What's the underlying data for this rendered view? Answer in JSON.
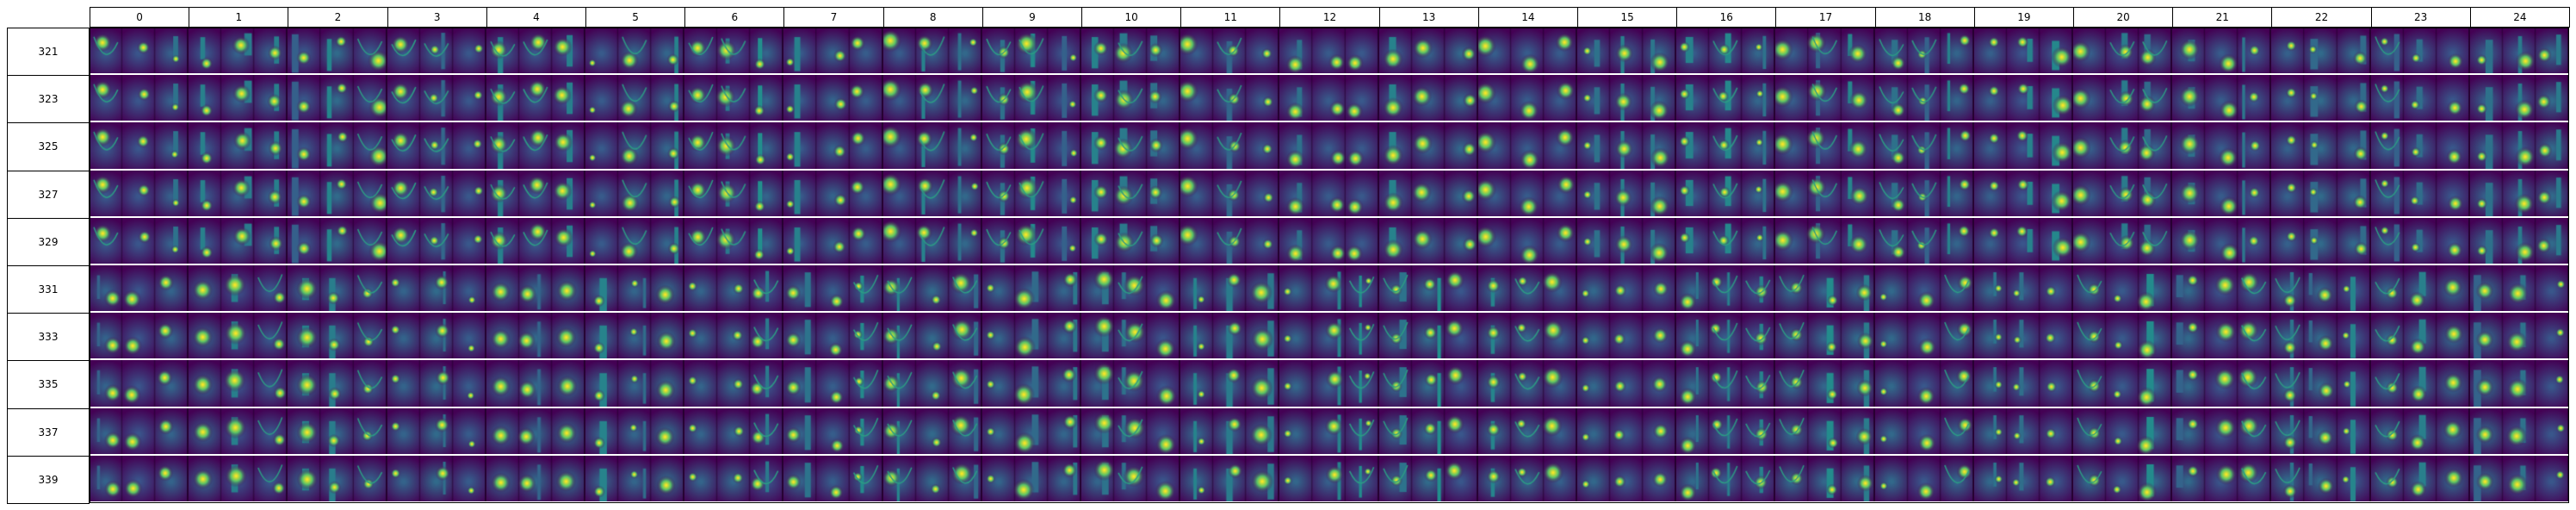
{
  "column_headers": [
    "0",
    "1",
    "2",
    "3",
    "4",
    "5",
    "6",
    "7",
    "8",
    "9",
    "10",
    "11",
    "12",
    "13",
    "14",
    "15",
    "16",
    "17",
    "18",
    "19",
    "20",
    "21",
    "22",
    "23",
    "24"
  ],
  "row_headers": [
    "321",
    "323",
    "325",
    "327",
    "329",
    "331",
    "333",
    "335",
    "337",
    "339"
  ],
  "colormap": {
    "name": "viridis",
    "stops": [
      "#440154",
      "#3b528b",
      "#21918c",
      "#5ec962",
      "#fde725"
    ]
  }
}
